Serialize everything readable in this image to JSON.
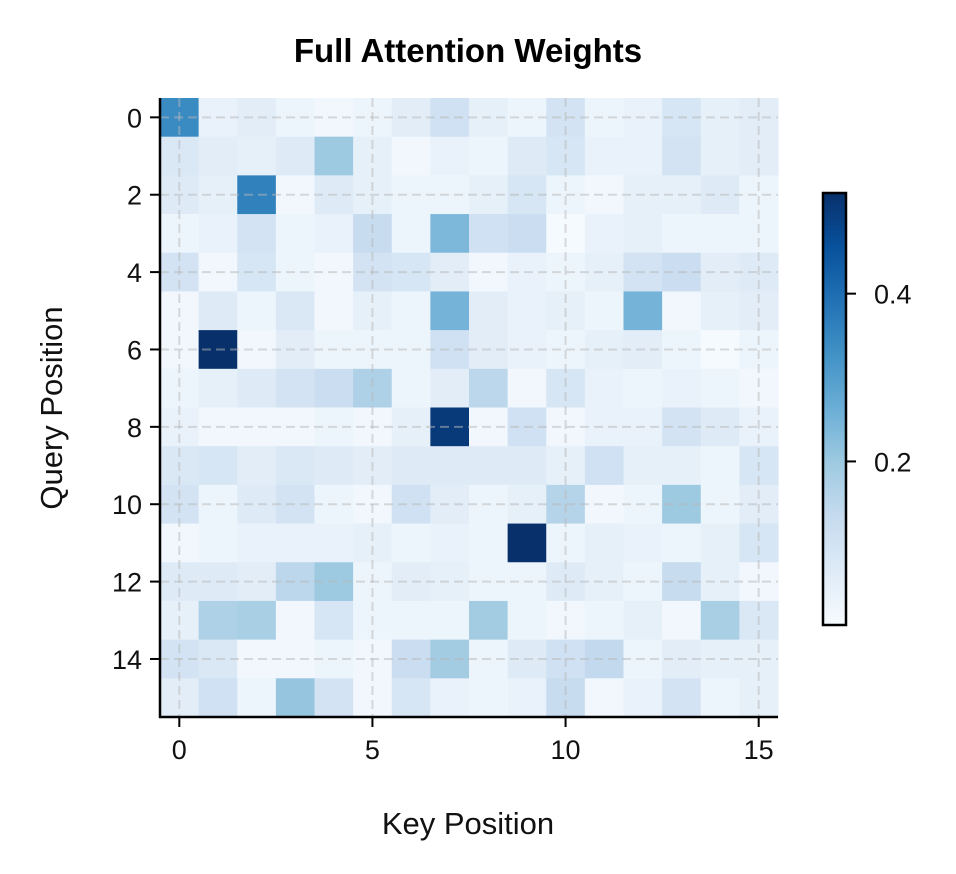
{
  "chart_data": {
    "type": "heatmap",
    "title": "Full Attention Weights",
    "xlabel": "Key Position",
    "ylabel": "Query Position",
    "colormap": "Blues",
    "vmin": 0.005,
    "vmax": 0.52,
    "grid": true,
    "x_ticks": [
      "0",
      "5",
      "10",
      "15"
    ],
    "y_ticks": [
      "0",
      "2",
      "4",
      "6",
      "8",
      "10",
      "12",
      "14"
    ],
    "colorbar": {
      "ticks": [
        "0.2",
        "0.4"
      ],
      "placement": "right"
    },
    "values": [
      [
        0.34,
        0.04,
        0.06,
        0.03,
        0.02,
        0.03,
        0.06,
        0.11,
        0.05,
        0.03,
        0.1,
        0.03,
        0.04,
        0.09,
        0.05,
        0.06
      ],
      [
        0.08,
        0.06,
        0.05,
        0.07,
        0.2,
        0.05,
        0.02,
        0.04,
        0.03,
        0.07,
        0.09,
        0.04,
        0.04,
        0.1,
        0.05,
        0.06
      ],
      [
        0.07,
        0.05,
        0.36,
        0.02,
        0.07,
        0.05,
        0.03,
        0.03,
        0.05,
        0.09,
        0.03,
        0.02,
        0.05,
        0.05,
        0.07,
        0.03
      ],
      [
        0.03,
        0.04,
        0.1,
        0.03,
        0.04,
        0.13,
        0.03,
        0.24,
        0.11,
        0.12,
        0.01,
        0.04,
        0.05,
        0.03,
        0.03,
        0.03
      ],
      [
        0.1,
        0.02,
        0.09,
        0.03,
        0.02,
        0.1,
        0.09,
        0.06,
        0.02,
        0.04,
        0.03,
        0.05,
        0.1,
        0.12,
        0.06,
        0.07
      ],
      [
        0.02,
        0.07,
        0.03,
        0.08,
        0.02,
        0.05,
        0.03,
        0.25,
        0.06,
        0.04,
        0.05,
        0.03,
        0.25,
        0.02,
        0.05,
        0.06
      ],
      [
        0.02,
        0.52,
        0.02,
        0.06,
        0.03,
        0.03,
        0.03,
        0.11,
        0.06,
        0.04,
        0.03,
        0.05,
        0.06,
        0.03,
        0.01,
        0.03
      ],
      [
        0.03,
        0.05,
        0.07,
        0.1,
        0.12,
        0.17,
        0.03,
        0.06,
        0.15,
        0.02,
        0.09,
        0.04,
        0.03,
        0.04,
        0.03,
        0.02
      ],
      [
        0.04,
        0.02,
        0.02,
        0.02,
        0.03,
        0.02,
        0.05,
        0.5,
        0.02,
        0.11,
        0.02,
        0.04,
        0.04,
        0.1,
        0.07,
        0.04
      ],
      [
        0.08,
        0.09,
        0.06,
        0.08,
        0.07,
        0.06,
        0.07,
        0.07,
        0.07,
        0.07,
        0.05,
        0.11,
        0.05,
        0.05,
        0.03,
        0.09
      ],
      [
        0.1,
        0.03,
        0.07,
        0.1,
        0.03,
        0.02,
        0.11,
        0.06,
        0.03,
        0.05,
        0.16,
        0.02,
        0.03,
        0.2,
        0.03,
        0.06
      ],
      [
        0.02,
        0.03,
        0.04,
        0.04,
        0.04,
        0.05,
        0.03,
        0.04,
        0.03,
        0.52,
        0.03,
        0.05,
        0.04,
        0.03,
        0.05,
        0.09
      ],
      [
        0.07,
        0.07,
        0.06,
        0.15,
        0.2,
        0.03,
        0.06,
        0.05,
        0.03,
        0.03,
        0.07,
        0.05,
        0.03,
        0.13,
        0.05,
        0.02
      ],
      [
        0.05,
        0.17,
        0.18,
        0.02,
        0.09,
        0.03,
        0.03,
        0.03,
        0.19,
        0.03,
        0.02,
        0.03,
        0.05,
        0.02,
        0.18,
        0.08
      ],
      [
        0.1,
        0.08,
        0.02,
        0.02,
        0.03,
        0.02,
        0.12,
        0.19,
        0.03,
        0.07,
        0.11,
        0.14,
        0.03,
        0.06,
        0.05,
        0.05
      ],
      [
        0.06,
        0.11,
        0.03,
        0.21,
        0.1,
        0.02,
        0.09,
        0.04,
        0.03,
        0.04,
        0.13,
        0.02,
        0.04,
        0.1,
        0.03,
        0.05
      ]
    ]
  }
}
